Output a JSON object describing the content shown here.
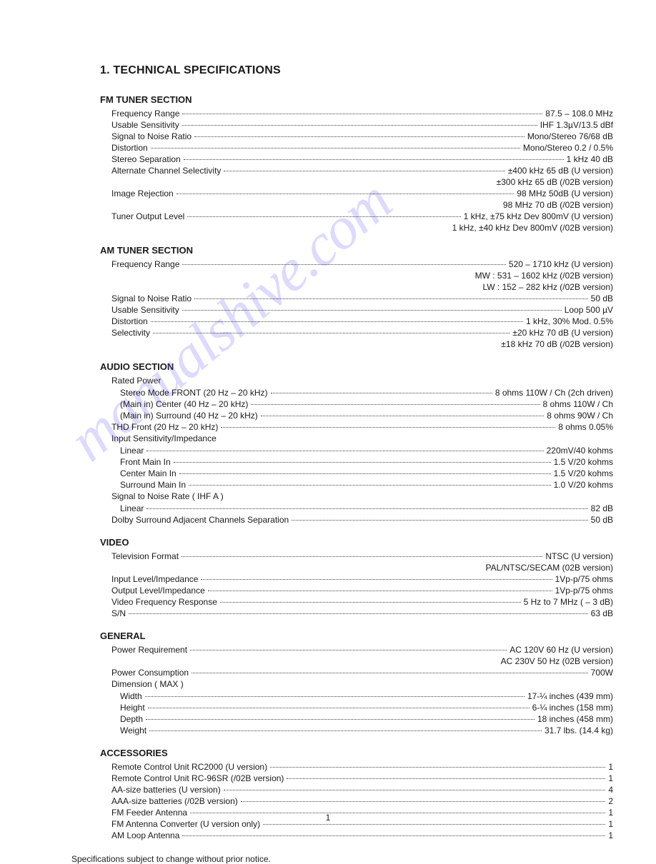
{
  "title": "1. TECHNICAL SPECIFICATIONS",
  "watermark": "manualshive.com",
  "page_number": "1",
  "footer": "Specifications subject to change without prior notice.",
  "sections": [
    {
      "heading": "FM TUNER SECTION",
      "rows": [
        {
          "label": "Frequency Range",
          "value": "87.5 – 108.0 MHz",
          "indent": 1,
          "dots": true
        },
        {
          "label": "Usable Sensitivity",
          "value": "IHF 1.3µV/13.5 dBf",
          "indent": 1,
          "dots": true
        },
        {
          "label": "Signal to Noise Ratio",
          "value": "Mono/Stereo 76/68 dB",
          "indent": 1,
          "dots": true
        },
        {
          "label": "Distortion",
          "value": "Mono/Stereo 0.2 / 0.5%",
          "indent": 1,
          "dots": true
        },
        {
          "label": "Stereo Separation",
          "value": "1 kHz 40 dB",
          "indent": 1,
          "dots": true
        },
        {
          "label": "Alternate Channel Selectivity",
          "value": "±400 kHz 65 dB (U version)",
          "indent": 1,
          "dots": true
        },
        {
          "label": "",
          "value": "±300 kHz 65 dB (/02B version)",
          "indent": 1,
          "dots": false
        },
        {
          "label": "Image Rejection",
          "value": "98 MHz 50dB (U version)",
          "indent": 1,
          "dots": true
        },
        {
          "label": "",
          "value": "98 MHz 70 dB (/02B version)",
          "indent": 1,
          "dots": false
        },
        {
          "label": "Tuner Output Level",
          "value": "1 kHz, ±75 kHz Dev 800mV (U version)",
          "indent": 1,
          "dots": true
        },
        {
          "label": "",
          "value": "1 kHz, ±40 kHz Dev 800mV (/02B version)",
          "indent": 1,
          "dots": false
        }
      ]
    },
    {
      "heading": "AM TUNER SECTION",
      "rows": [
        {
          "label": "Frequency Range",
          "value": "520 – 1710 kHz (U version)",
          "indent": 1,
          "dots": true
        },
        {
          "label": "",
          "value": "MW : 531 – 1602 kHz (/02B version)",
          "indent": 1,
          "dots": false
        },
        {
          "label": "",
          "value": "LW : 152 – 282 kHz  (/02B version)",
          "indent": 1,
          "dots": false
        },
        {
          "label": "Signal to Noise Ratio",
          "value": "50 dB",
          "indent": 1,
          "dots": true
        },
        {
          "label": "Usable Sensitivity",
          "value": "Loop 500 µV",
          "indent": 1,
          "dots": true
        },
        {
          "label": "Distortion",
          "value": "1 kHz, 30% Mod. 0.5%",
          "indent": 1,
          "dots": true
        },
        {
          "label": "Selectivity",
          "value": "±20 kHz 70 dB (U version)",
          "indent": 1,
          "dots": true
        },
        {
          "label": "",
          "value": "±18 kHz 70 dB (/02B version)",
          "indent": 1,
          "dots": false
        }
      ]
    },
    {
      "heading": "AUDIO SECTION",
      "rows": [
        {
          "label": "Rated Power",
          "value": "",
          "indent": 1,
          "dots": false,
          "subhead": true
        },
        {
          "label": "Stereo Mode FRONT (20 Hz – 20 kHz)",
          "value": "8 ohms 110W / Ch (2ch driven)",
          "indent": 2,
          "dots": true
        },
        {
          "label": "(Main in) Center (40 Hz – 20 kHz)",
          "value": "8 ohms 110W / Ch",
          "indent": 2,
          "dots": true
        },
        {
          "label": "(Main in) Surround (40 Hz – 20 kHz)",
          "value": "8 ohms 90W / Ch",
          "indent": 2,
          "dots": true
        },
        {
          "label": "THD Front (20 Hz – 20 kHz)",
          "value": "8 ohms 0.05%",
          "indent": 1,
          "dots": true
        },
        {
          "label": "Input Sensitivity/Impedance",
          "value": "",
          "indent": 1,
          "dots": false,
          "subhead": true
        },
        {
          "label": "Linear",
          "value": "220mV/40 kohms",
          "indent": 2,
          "dots": true
        },
        {
          "label": "Front Main In",
          "value": "1.5 V/20 kohms",
          "indent": 2,
          "dots": true
        },
        {
          "label": "Center Main In",
          "value": "1.5 V/20 kohms",
          "indent": 2,
          "dots": true
        },
        {
          "label": "Surround Main In",
          "value": "1.0 V/20 kohms",
          "indent": 2,
          "dots": true
        },
        {
          "label": "Signal to Noise Rate ( IHF A )",
          "value": "",
          "indent": 1,
          "dots": false,
          "subhead": true
        },
        {
          "label": "Linear",
          "value": "82 dB",
          "indent": 2,
          "dots": true
        },
        {
          "label": "Dolby Surround Adjacent Channels Separation",
          "value": "50 dB",
          "indent": 1,
          "dots": true
        }
      ]
    },
    {
      "heading": "VIDEO",
      "rows": [
        {
          "label": "Television Format",
          "value": "NTSC  (U version)",
          "indent": 1,
          "dots": true
        },
        {
          "label": "",
          "value": "PAL/NTSC/SECAM (02B version)",
          "indent": 1,
          "dots": false
        },
        {
          "label": "Input Level/Impedance",
          "value": "1Vp-p/75 ohms",
          "indent": 1,
          "dots": true
        },
        {
          "label": "Output Level/Impedance",
          "value": "1Vp-p/75 ohms",
          "indent": 1,
          "dots": true
        },
        {
          "label": "Video Frequency Response",
          "value": "5 Hz to 7 MHz ( – 3 dB)",
          "indent": 1,
          "dots": true
        },
        {
          "label": "S/N",
          "value": "63 dB",
          "indent": 1,
          "dots": true
        }
      ]
    },
    {
      "heading": "GENERAL",
      "rows": [
        {
          "label": "Power Requirement",
          "value": "AC 120V 60 Hz  (U version)",
          "indent": 1,
          "dots": true
        },
        {
          "label": "",
          "value": "AC 230V 50 Hz (02B version)",
          "indent": 1,
          "dots": false
        },
        {
          "label": "Power Consumption",
          "value": "700W",
          "indent": 1,
          "dots": true
        },
        {
          "label": "Dimension ( MAX )",
          "value": "",
          "indent": 1,
          "dots": false,
          "subhead": true
        },
        {
          "label": "Width",
          "value": "17-¼ inches (439 mm)",
          "indent": 2,
          "dots": true
        },
        {
          "label": "Height",
          "value": "6-¼ inches (158 mm)",
          "indent": 2,
          "dots": true
        },
        {
          "label": "Depth",
          "value": "18 inches (458 mm)",
          "indent": 2,
          "dots": true
        },
        {
          "label": "Weight",
          "value": "31.7 lbs. (14.4 kg)",
          "indent": 2,
          "dots": true
        }
      ]
    },
    {
      "heading": "ACCESSORIES",
      "rows": [
        {
          "label": "Remote Control Unit RC2000 (U version)",
          "value": "1",
          "indent": 1,
          "dots": true
        },
        {
          "label": "Remote Control Unit RC-96SR (/02B version)",
          "value": "1",
          "indent": 1,
          "dots": true
        },
        {
          "label": "AA-size batteries (U version)",
          "value": "4",
          "indent": 1,
          "dots": true
        },
        {
          "label": "AAA-size batteries (/02B version)",
          "value": "2",
          "indent": 1,
          "dots": true
        },
        {
          "label": "FM Feeder Antenna",
          "value": "1",
          "indent": 1,
          "dots": true
        },
        {
          "label": "FM Antenna Converter (U version only)",
          "value": "1",
          "indent": 1,
          "dots": true
        },
        {
          "label": "AM Loop Antenna",
          "value": "1",
          "indent": 1,
          "dots": true
        }
      ]
    }
  ]
}
